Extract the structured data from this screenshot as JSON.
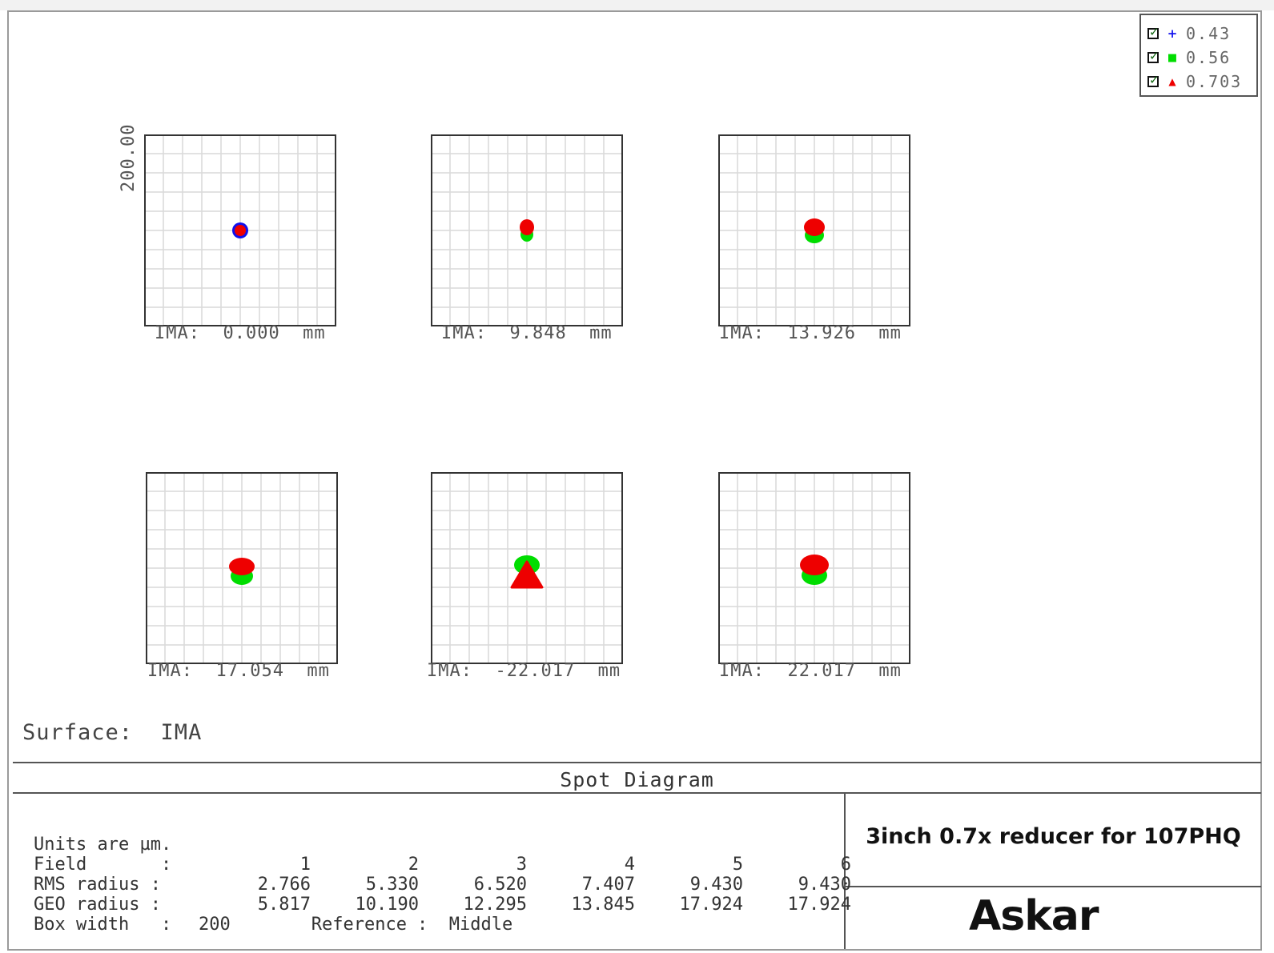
{
  "legend": [
    {
      "symbol": "+",
      "value": "0.43",
      "color": "#1010ee",
      "icon": "blue-plus-icon"
    },
    {
      "symbol": "■",
      "value": "0.56",
      "color": "#00dd00",
      "icon": "green-square-icon"
    },
    {
      "symbol": "▲",
      "value": "0.703",
      "color": "#ee0000",
      "icon": "red-triangle-icon"
    }
  ],
  "scale_label": "200.00",
  "panels": [
    {
      "label": "IMA:  0.000  mm"
    },
    {
      "label": "IMA:  9.848  mm"
    },
    {
      "label": "IMA:  13.926  mm"
    },
    {
      "label": "IMA:  17.054  mm"
    },
    {
      "label": "IMA:  -22.017  mm"
    },
    {
      "label": "IMA:  22.017  mm"
    }
  ],
  "surface_label": "Surface:  IMA",
  "title": "Spot Diagram",
  "stats": {
    "units": "Units are µm.",
    "field_label": "Field       :",
    "fields": [
      "1",
      "2",
      "3",
      "4",
      "5",
      "6"
    ],
    "rms_label": "RMS radius :",
    "rms": [
      "2.766",
      "5.330",
      "6.520",
      "7.407",
      "9.430",
      "9.430"
    ],
    "geo_label": "GEO radius :",
    "geo": [
      "5.817",
      "10.190",
      "12.295",
      "13.845",
      "17.924",
      "17.924"
    ],
    "box_label": "Box width   :",
    "box_value": "200",
    "ref_label": "Reference",
    "ref_value": ":  Middle"
  },
  "product": "3inch 0.7x reducer for 107PHQ",
  "logo": "Askar"
}
